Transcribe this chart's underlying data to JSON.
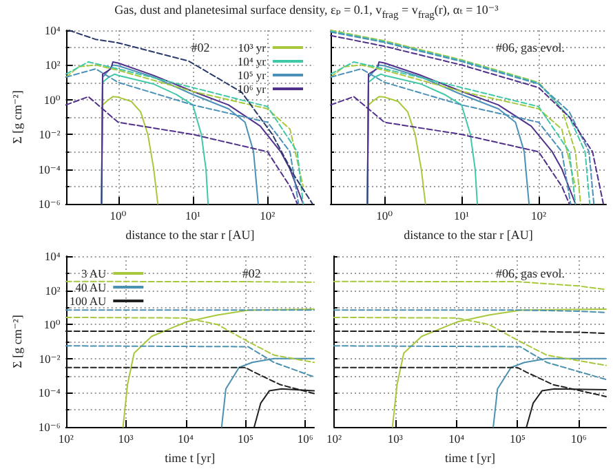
{
  "chart_data": [
    {
      "type": "line",
      "title": "Gas, dust and planetesimal surface density, εₚ = 0.1, v$_{frag}$ = v$_{frag}$(r), αₜ = 10⁻³",
      "xlabel": "distance to the star r [AU]",
      "ylabel": "Σ [g cm⁻²]",
      "annotations": [
        "#02"
      ],
      "log": "xy",
      "xlim": [
        0.2,
        420
      ],
      "ylim": [
        1e-06,
        10000.0
      ],
      "xticks": [
        {
          "value": 1,
          "label": "10⁰"
        },
        {
          "value": 10,
          "label": "10¹"
        },
        {
          "value": 100,
          "label": "10²"
        }
      ],
      "yticks": [
        {
          "value": 1e-06,
          "label": "10⁻⁶"
        },
        {
          "value": 1e-05,
          "label": null
        },
        {
          "value": 0.0001,
          "label": "10⁻⁴"
        },
        {
          "value": 0.001,
          "label": null
        },
        {
          "value": 0.01,
          "label": "10⁻²"
        },
        {
          "value": 0.1,
          "label": null
        },
        {
          "value": 1,
          "label": "10⁰"
        },
        {
          "value": 10,
          "label": null
        },
        {
          "value": 100,
          "label": "10²"
        },
        {
          "value": 1000,
          "label": null
        },
        {
          "value": 10000.0,
          "label": "10⁴"
        }
      ],
      "grid": true,
      "legend": "top right",
      "marker": "none",
      "line_style": "solid",
      "series": [
        {
          "name": "10³ yr",
          "color": "#a8c83c",
          "x": [
            0.6,
            0.62,
            0.7,
            0.85,
            1,
            1.5,
            2,
            2.5,
            3,
            3.4
          ],
          "values": [
            1e-06,
            0.5,
            0.8,
            1.5,
            1.4,
            0.8,
            0.2,
            0.01,
            0.0001,
            1e-06
          ]
        },
        {
          "name": "10⁴ yr",
          "color": "#40c8a8",
          "x": [
            0.6,
            0.62,
            0.75,
            0.9,
            1,
            3,
            6,
            10,
            13,
            15,
            16
          ],
          "values": [
            1e-06,
            10,
            20,
            30,
            25,
            8,
            2,
            0.5,
            0.01,
            0.0001,
            1e-06
          ]
        },
        {
          "name": "10⁵ yr",
          "color": "#4a90b8",
          "x": [
            0.6,
            0.62,
            0.75,
            0.85,
            1,
            3,
            10,
            30,
            50,
            65,
            75
          ],
          "values": [
            1e-06,
            20,
            50,
            100,
            90,
            20,
            2,
            0.3,
            0.05,
            0.001,
            1e-06
          ]
        },
        {
          "name": "10⁶ yr",
          "color": "#50308a",
          "x": [
            0.6,
            0.62,
            0.8,
            0.85,
            1,
            3,
            10,
            30,
            80,
            150,
            200,
            300
          ],
          "values": [
            1e-06,
            30,
            60,
            150,
            130,
            25,
            3,
            0.5,
            0.03,
            0.001,
            0.0001,
            1e-06
          ]
        },
        {
          "color": "#a8c83c",
          "line_style": "dashed",
          "x": [
            0.2,
            0.3,
            0.5,
            1,
            10,
            100,
            200,
            300
          ],
          "values": [
            20,
            80,
            100,
            50,
            3,
            0.3,
            0.02,
            1e-05
          ]
        },
        {
          "color": "#40c8a8",
          "line_style": "dashed",
          "x": [
            0.2,
            0.4,
            1,
            10,
            100,
            250,
            300
          ],
          "values": [
            30,
            150,
            60,
            5,
            0.4,
            0.001,
            1e-06
          ]
        },
        {
          "color": "#4a90b8",
          "line_style": "dashed",
          "x": [
            0.2,
            0.5,
            1,
            10,
            100,
            200,
            260
          ],
          "values": [
            20,
            60,
            10,
            0.5,
            0.05,
            0.001,
            1e-06
          ]
        },
        {
          "color": "#50308a",
          "line_style": "dashed",
          "x": [
            0.2,
            0.4,
            1,
            10,
            100,
            200,
            250
          ],
          "values": [
            0.5,
            1.5,
            0.05,
            0.01,
            0.001,
            1e-05,
            1e-06
          ]
        },
        {
          "color": "#2a3a6a",
          "line_style": "dashed",
          "x": [
            0.22,
            0.5,
            1,
            8.8,
            45,
            116,
            230,
            400
          ],
          "values": [
            10000.0,
            3000,
            1900,
            170,
            2.7,
            0.01,
            4e-05,
            1e-06
          ]
        }
      ]
    },
    {
      "type": "line",
      "xlabel": "distance to the star r [AU]",
      "annotations": [
        "#06, gas evol."
      ],
      "log": "xy",
      "tick_labels": "x",
      "xlim": [
        0.2,
        750
      ],
      "ylim": [
        1e-06,
        10000.0
      ],
      "xticks": [
        {
          "value": 1,
          "label": "10⁰"
        },
        {
          "value": 10,
          "label": "10¹"
        },
        {
          "value": 100,
          "label": "10²"
        }
      ],
      "yticks": [
        {
          "value": 1e-06,
          "label": null
        },
        {
          "value": 1e-05,
          "label": null
        },
        {
          "value": 0.0001,
          "label": null
        },
        {
          "value": 0.001,
          "label": null
        },
        {
          "value": 0.01,
          "label": null
        },
        {
          "value": 0.1,
          "label": null
        },
        {
          "value": 1,
          "label": null
        },
        {
          "value": 10,
          "label": null
        },
        {
          "value": 100,
          "label": null
        },
        {
          "value": 1000,
          "label": null
        },
        {
          "value": 10000.0,
          "label": null
        }
      ],
      "grid": true,
      "marker": "none",
      "line_style": "solid",
      "series": [
        {
          "color": "#a8c83c",
          "x": [
            0.6,
            0.62,
            0.7,
            0.85,
            1,
            1.5,
            2,
            2.5,
            3,
            3.4
          ],
          "values": [
            1e-06,
            0.5,
            0.8,
            1.5,
            1.4,
            0.8,
            0.2,
            0.01,
            0.0001,
            1e-06
          ]
        },
        {
          "color": "#40c8a8",
          "x": [
            0.6,
            0.62,
            0.75,
            0.9,
            1,
            3,
            6,
            10,
            13,
            15,
            16
          ],
          "values": [
            1e-06,
            10,
            20,
            30,
            25,
            8,
            2,
            0.5,
            0.01,
            0.0001,
            1e-06
          ]
        },
        {
          "color": "#4a90b8",
          "x": [
            0.6,
            0.62,
            0.75,
            0.85,
            1,
            3,
            10,
            30,
            50,
            65,
            75
          ],
          "values": [
            1e-06,
            20,
            50,
            100,
            90,
            20,
            2,
            0.3,
            0.05,
            0.001,
            1e-06
          ]
        },
        {
          "color": "#50308a",
          "x": [
            0.6,
            0.62,
            0.8,
            0.85,
            1,
            3,
            10,
            30,
            80,
            150,
            200,
            300
          ],
          "values": [
            1e-06,
            30,
            60,
            150,
            130,
            25,
            3,
            0.5,
            0.03,
            0.001,
            0.0001,
            1e-06
          ]
        },
        {
          "color": "#a8c83c",
          "line_style": "dashed",
          "x": [
            0.2,
            0.3,
            0.5,
            1,
            10,
            100,
            200,
            300
          ],
          "values": [
            20,
            80,
            100,
            50,
            3,
            0.3,
            0.02,
            1e-05
          ]
        },
        {
          "color": "#40c8a8",
          "line_style": "dashed",
          "x": [
            0.2,
            0.4,
            1,
            10,
            100,
            250,
            300
          ],
          "values": [
            30,
            150,
            60,
            5,
            0.4,
            0.001,
            1e-06
          ]
        },
        {
          "color": "#4a90b8",
          "line_style": "dashed",
          "x": [
            0.2,
            0.5,
            1,
            10,
            100,
            200,
            260
          ],
          "values": [
            20,
            60,
            10,
            0.5,
            0.05,
            0.001,
            1e-06
          ]
        },
        {
          "color": "#50308a",
          "line_style": "dashed",
          "x": [
            0.2,
            0.4,
            1,
            10,
            100,
            200,
            250
          ],
          "values": [
            0.5,
            1.5,
            0.05,
            0.01,
            0.001,
            1e-05,
            1e-06
          ]
        },
        {
          "color": "#a8c83c",
          "line_style": "dashed",
          "x": [
            0.2,
            1,
            10,
            100,
            200,
            300,
            350
          ],
          "values": [
            10000.0,
            2500,
            200,
            10,
            0.3,
            0.001,
            1e-06
          ]
        },
        {
          "color": "#40c8a8",
          "line_style": "dashed",
          "x": [
            0.2,
            1,
            10,
            100,
            250,
            400,
            460
          ],
          "values": [
            9000,
            2200,
            180,
            9,
            0.1,
            0.001,
            1e-06
          ]
        },
        {
          "color": "#4a90b8",
          "line_style": "dashed",
          "x": [
            0.2,
            1,
            10,
            100,
            250,
            450,
            520
          ],
          "values": [
            8000,
            2000,
            160,
            8,
            0.2,
            0.001,
            1e-06
          ]
        },
        {
          "color": "#50308a",
          "line_style": "dashed",
          "x": [
            0.2,
            1,
            10,
            100,
            250,
            500,
            690
          ],
          "values": [
            5000,
            1200,
            100,
            5,
            0.1,
            0.001,
            1e-06
          ]
        }
      ]
    },
    {
      "type": "line",
      "xlabel": "time t [yr]",
      "ylabel": "Σ [g cm⁻²]",
      "annotations": [
        "#02"
      ],
      "log": "xy",
      "xlim": [
        100,
        1400000.0
      ],
      "ylim": [
        1e-06,
        10000.0
      ],
      "xticks": [
        {
          "value": 100,
          "label": "10²"
        },
        {
          "value": 1000,
          "label": "10³"
        },
        {
          "value": 10000.0,
          "label": "10⁴"
        },
        {
          "value": 100000.0,
          "label": "10⁵"
        },
        {
          "value": 1000000.0,
          "label": "10⁶"
        }
      ],
      "yticks": [
        {
          "value": 1e-06,
          "label": "10⁻⁶"
        },
        {
          "value": 1e-05,
          "label": null
        },
        {
          "value": 0.0001,
          "label": "10⁻⁴"
        },
        {
          "value": 0.001,
          "label": null
        },
        {
          "value": 0.01,
          "label": "10⁻²"
        },
        {
          "value": 0.1,
          "label": null
        },
        {
          "value": 1,
          "label": "10⁰"
        },
        {
          "value": 10,
          "label": null
        },
        {
          "value": 100,
          "label": "10²"
        },
        {
          "value": 1000,
          "label": null
        },
        {
          "value": 10000.0,
          "label": "10⁴"
        }
      ],
      "grid": true,
      "legend": "top left",
      "marker": "none",
      "line_style": "solid",
      "series": [
        {
          "name": "3 AU",
          "color": "#a8c83c",
          "x": [
            900,
            1070,
            1380,
            2700,
            10200,
            34000,
            110000,
            1400000
          ],
          "values": [
            1e-06,
            0.0003,
            0.021,
            0.2,
            1.4,
            3.6,
            6.9,
            7.9
          ]
        },
        {
          "name": "40 AU",
          "color": "#4a90b0",
          "x": [
            40000,
            47000,
            78000,
            130000,
            300000,
            1400000
          ],
          "values": [
            1e-06,
            0.00017,
            0.003,
            0.006,
            0.01,
            0.01
          ]
        },
        {
          "name": "100 AU",
          "color": "#202020",
          "x": [
            140000,
            180000,
            250000,
            400000,
            1400000
          ],
          "values": [
            1e-06,
            2.5e-05,
            0.00013,
            0.00017,
            0.00013
          ]
        },
        {
          "color": "#a8c83c",
          "line_style": "dashed",
          "x": [
            100,
            100000,
            1400000
          ],
          "values": [
            330,
            320,
            300
          ]
        },
        {
          "color": "#a8c83c",
          "line_style": "dashed",
          "x": [
            100,
            10000,
            34000,
            110000,
            300000,
            1400000
          ],
          "values": [
            2.6,
            2.4,
            1,
            0.1,
            0.016,
            0.006
          ]
        },
        {
          "color": "#4a90b0",
          "line_style": "dashed",
          "x": [
            100,
            100000,
            1400000
          ],
          "values": [
            7,
            7,
            7
          ]
        },
        {
          "color": "#4a90b0",
          "line_style": "dashed",
          "x": [
            100,
            110000,
            300000,
            1400000
          ],
          "values": [
            0.056,
            0.05,
            0.006,
            0.00085
          ]
        },
        {
          "color": "#202020",
          "line_style": "dashed",
          "x": [
            100,
            100000,
            1400000
          ],
          "values": [
            0.4,
            0.4,
            0.4
          ]
        },
        {
          "color": "#202020",
          "line_style": "dashed",
          "x": [
            100,
            100000,
            140000,
            380000,
            1400000
          ],
          "values": [
            0.003,
            0.003,
            0.0016,
            0.0003,
            9e-05
          ]
        }
      ]
    },
    {
      "type": "line",
      "xlabel": "time t [yr]",
      "annotations": [
        "#06, gas evol."
      ],
      "log": "xy",
      "tick_labels": "x",
      "xlim": [
        100,
        2800000.0
      ],
      "ylim": [
        1e-06,
        10000.0
      ],
      "xticks": [
        {
          "value": 100,
          "label": "10²"
        },
        {
          "value": 1000,
          "label": "10³"
        },
        {
          "value": 10000.0,
          "label": "10⁴"
        },
        {
          "value": 100000.0,
          "label": "10⁵"
        },
        {
          "value": 1000000.0,
          "label": "10⁶"
        }
      ],
      "yticks": [
        {
          "value": 1e-06,
          "label": null
        },
        {
          "value": 1e-05,
          "label": null
        },
        {
          "value": 0.0001,
          "label": null
        },
        {
          "value": 0.001,
          "label": null
        },
        {
          "value": 0.01,
          "label": null
        },
        {
          "value": 0.1,
          "label": null
        },
        {
          "value": 1,
          "label": null
        },
        {
          "value": 10,
          "label": null
        },
        {
          "value": 100,
          "label": null
        },
        {
          "value": 1000,
          "label": null
        },
        {
          "value": 10000.0,
          "label": null
        }
      ],
      "grid": true,
      "marker": "none",
      "line_style": "solid",
      "series": [
        {
          "color": "#a8c83c",
          "x": [
            900,
            1070,
            1380,
            2700,
            10200,
            34000,
            110000,
            2800000
          ],
          "values": [
            1e-06,
            0.0003,
            0.021,
            0.2,
            1.4,
            3.6,
            6.9,
            7.9
          ]
        },
        {
          "color": "#4a90b0",
          "x": [
            40000,
            47000,
            78000,
            130000,
            300000,
            2800000
          ],
          "values": [
            1e-06,
            0.00017,
            0.003,
            0.006,
            0.01,
            0.01
          ]
        },
        {
          "color": "#202020",
          "x": [
            140000,
            180000,
            250000,
            400000,
            2800000
          ],
          "values": [
            1e-06,
            2.5e-05,
            0.00013,
            0.00017,
            0.00015
          ]
        },
        {
          "color": "#a8c83c",
          "line_style": "dashed",
          "x": [
            100,
            100000,
            1000000,
            2800000
          ],
          "values": [
            330,
            320,
            180,
            110
          ]
        },
        {
          "color": "#a8c83c",
          "line_style": "dashed",
          "x": [
            100,
            10000,
            34000,
            110000,
            300000,
            2800000
          ],
          "values": [
            2.6,
            2.4,
            1,
            0.1,
            0.016,
            0.004
          ]
        },
        {
          "color": "#4a90b0",
          "line_style": "dashed",
          "x": [
            100,
            100000,
            1000000,
            2800000
          ],
          "values": [
            7,
            7,
            6,
            5
          ]
        },
        {
          "color": "#4a90b0",
          "line_style": "dashed",
          "x": [
            100,
            110000,
            300000,
            2800000
          ],
          "values": [
            0.056,
            0.05,
            0.006,
            0.0006
          ]
        },
        {
          "color": "#202020",
          "line_style": "dashed",
          "x": [
            100,
            100000,
            1000000,
            2800000
          ],
          "values": [
            0.4,
            0.4,
            0.35,
            0.3
          ]
        },
        {
          "color": "#202020",
          "line_style": "dashed",
          "x": [
            100,
            100000,
            140000,
            380000,
            2800000
          ],
          "values": [
            0.003,
            0.003,
            0.0016,
            0.0003,
            6e-05
          ]
        }
      ]
    }
  ]
}
